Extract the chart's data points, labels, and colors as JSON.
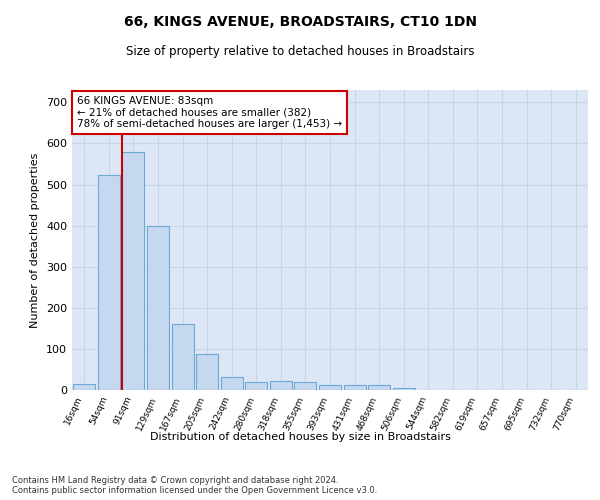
{
  "title": "66, KINGS AVENUE, BROADSTAIRS, CT10 1DN",
  "subtitle": "Size of property relative to detached houses in Broadstairs",
  "xlabel": "Distribution of detached houses by size in Broadstairs",
  "ylabel": "Number of detached properties",
  "categories": [
    "16sqm",
    "54sqm",
    "91sqm",
    "129sqm",
    "167sqm",
    "205sqm",
    "242sqm",
    "280sqm",
    "318sqm",
    "355sqm",
    "393sqm",
    "431sqm",
    "468sqm",
    "506sqm",
    "544sqm",
    "582sqm",
    "619sqm",
    "657sqm",
    "695sqm",
    "732sqm",
    "770sqm"
  ],
  "bar_heights": [
    15,
    522,
    580,
    400,
    160,
    88,
    32,
    20,
    22,
    20,
    11,
    13,
    12,
    6,
    0,
    0,
    0,
    0,
    0,
    0,
    0
  ],
  "bar_color": "#c5d8ef",
  "bar_edge_color": "#6aaad4",
  "annotation_box_text": "66 KINGS AVENUE: 83sqm\n← 21% of detached houses are smaller (382)\n78% of semi-detached houses are larger (1,453) →",
  "annotation_box_color": "#ffffff",
  "annotation_box_edge_color": "#cc0000",
  "vline_color": "#cc0000",
  "vline_x_index": 2,
  "ylim": [
    0,
    730
  ],
  "yticks": [
    0,
    100,
    200,
    300,
    400,
    500,
    600,
    700
  ],
  "grid_color": "#c8d4e8",
  "background_color": "#dce6f5",
  "footer_line1": "Contains HM Land Registry data © Crown copyright and database right 2024.",
  "footer_line2": "Contains public sector information licensed under the Open Government Licence v3.0."
}
